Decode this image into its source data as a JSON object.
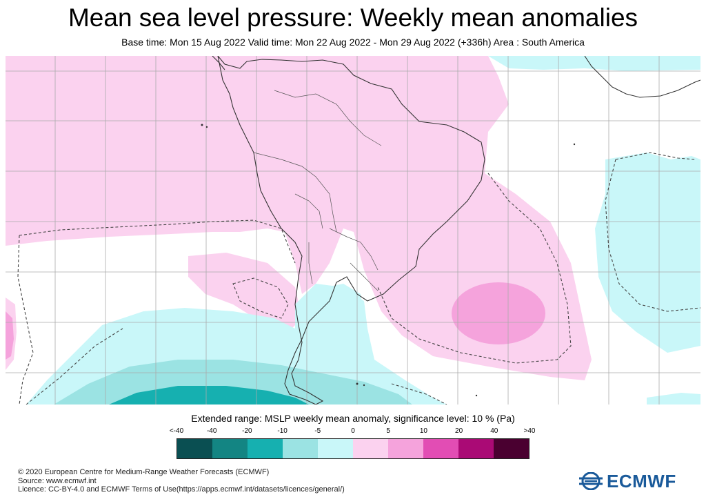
{
  "title": "Mean sea level pressure: Weekly mean anomalies",
  "subtitle": "Base time: Mon 15 Aug 2022 Valid time: Mon 22 Aug 2022 - Mon 29 Aug 2022 (+336h) Area : South America",
  "legend": {
    "title": "Extended range: MSLP weekly mean anomaly, significance level: 10 % (Pa)",
    "ticks": [
      "<-40",
      "-40",
      "-20",
      "-10",
      "-5",
      "0",
      "5",
      "10",
      "20",
      "40",
      ">40"
    ],
    "bins": [
      {
        "range": "<-40 to -40",
        "color": "#0a4f52"
      },
      {
        "range": "-40 to -20",
        "color": "#138583"
      },
      {
        "range": "-20 to -10",
        "color": "#16b0b0"
      },
      {
        "range": "-10 to -5",
        "color": "#9be3e3"
      },
      {
        "range": "-5 to 0",
        "color": "#c9f7f9"
      },
      {
        "range": "0 to 5",
        "color": "#fbd2ef"
      },
      {
        "range": "5 to 10",
        "color": "#f5a3dc"
      },
      {
        "range": "10 to 20",
        "color": "#e24db4"
      },
      {
        "range": "20 to 40",
        "color": "#aa0a75"
      },
      {
        "range": "40 to >40",
        "color": "#4a0030"
      }
    ]
  },
  "map": {
    "region": "South America",
    "features": [
      "coastlines",
      "country-borders",
      "graticule",
      "significance-contour-dashed"
    ],
    "colors": {
      "land_border": "#333333",
      "graticule": "#aaaaaa",
      "contour": "#444444"
    }
  },
  "footer": {
    "copyright": "© 2020 European Centre for Medium-Range Weather Forecasts (ECMWF)",
    "source": "Source: www.ecmwf.int",
    "licence": "Licence: CC-BY-4.0 and ECMWF Terms of Use(https://apps.ecmwf.int/datasets/licences/general/)"
  },
  "logo": {
    "text": "ECMWF",
    "color": "#1a5a9a"
  }
}
